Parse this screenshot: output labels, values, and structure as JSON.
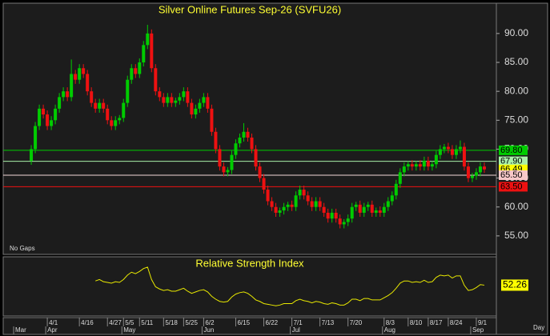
{
  "chart_data": [
    {
      "type": "candlestick",
      "title": "Silver Online Futures Sep-26 (SVFU26)",
      "annotation": "No Gaps",
      "x_unit": "Day",
      "ylim": [
        51.8,
        95.1
      ],
      "yticks": [
        {
          "value": 55,
          "label": "55.00"
        },
        {
          "value": 60,
          "label": "60.00"
        },
        {
          "value": 65,
          "label": "65.00"
        },
        {
          "value": 70,
          "label": "70.00"
        },
        {
          "value": 75,
          "label": "75.00"
        },
        {
          "value": 80,
          "label": "80.00"
        },
        {
          "value": 85,
          "label": "85.00"
        },
        {
          "value": 90,
          "label": "90.00"
        }
      ],
      "xlim": [
        -7,
        116
      ],
      "xticks": [
        {
          "value": 4,
          "label": "4/1"
        },
        {
          "value": 12,
          "label": "4/16"
        },
        {
          "value": 19,
          "label": "4/27"
        },
        {
          "value": 23,
          "label": "5/5"
        },
        {
          "value": 27,
          "label": "5/11"
        },
        {
          "value": 33,
          "label": "5/18"
        },
        {
          "value": 38,
          "label": "5/25"
        },
        {
          "value": 43,
          "label": "6/2"
        },
        {
          "value": 51,
          "label": "6/15"
        },
        {
          "value": 58,
          "label": "6/22"
        },
        {
          "value": 65,
          "label": "7/1"
        },
        {
          "value": 72,
          "label": "7/13"
        },
        {
          "value": 79,
          "label": "7/20"
        },
        {
          "value": 88,
          "label": "8/3"
        },
        {
          "value": 94,
          "label": "8/10"
        },
        {
          "value": 99,
          "label": "8/17"
        },
        {
          "value": 104,
          "label": "8/24"
        },
        {
          "value": 111,
          "label": "9/1"
        }
      ],
      "month_ticks": [
        {
          "value": -4,
          "label": "Mar"
        },
        {
          "value": 4,
          "label": "Apr"
        },
        {
          "value": 23,
          "label": "May"
        },
        {
          "value": 43,
          "label": "Jun"
        },
        {
          "value": 65,
          "label": "Jul"
        },
        {
          "value": 88,
          "label": "Aug"
        },
        {
          "value": 110,
          "label": "Sep"
        }
      ],
      "up_color": "#00cc00",
      "down_color": "#ee1111",
      "levels": [
        {
          "value": 69.8,
          "label": "69.80",
          "color": "#00cc00",
          "label_bg": "#00cc00",
          "line": true
        },
        {
          "value": 67.9,
          "label": "67.90",
          "color": "#a8f0a8",
          "label_bg": "#a8f0a8",
          "line": true
        },
        {
          "value": 66.49,
          "label": "66.49",
          "color": "#ffff00",
          "label_bg": "#ffff00",
          "line": false
        },
        {
          "value": 65.5,
          "label": "65.50",
          "color": "#f4d8d8",
          "label_bg": "#f7c8c8",
          "line": true
        },
        {
          "value": 63.5,
          "label": "63.50",
          "color": "#ee1111",
          "label_bg": "#ee1111",
          "line": true
        }
      ],
      "values": [
        [
          68,
          70.7,
          67.3,
          70
        ],
        [
          70,
          74.7,
          69.3,
          74
        ],
        [
          74,
          77.7,
          73.3,
          77
        ],
        [
          77,
          77.7,
          75.3,
          76
        ],
        [
          76,
          76.7,
          73.3,
          74
        ],
        [
          74,
          75.7,
          73.3,
          75
        ],
        [
          75,
          77.7,
          74.3,
          77
        ],
        [
          77,
          79.7,
          76.3,
          79
        ],
        [
          79,
          80.7,
          78.3,
          80
        ],
        [
          80,
          80.7,
          78.3,
          79
        ],
        [
          79,
          85.5,
          78.3,
          83
        ],
        [
          83,
          83.7,
          81.3,
          82
        ],
        [
          82,
          84.7,
          81.3,
          84
        ],
        [
          84,
          84.7,
          82.3,
          83
        ],
        [
          83,
          83.7,
          79.3,
          80
        ],
        [
          80,
          80.7,
          77.3,
          78
        ],
        [
          78,
          78.7,
          76.3,
          77
        ],
        [
          77,
          78.7,
          76.3,
          78
        ],
        [
          78,
          78.7,
          76.3,
          77
        ],
        [
          77,
          77.7,
          74.3,
          75
        ],
        [
          75,
          75.7,
          73.3,
          74
        ],
        [
          74,
          75.7,
          73.3,
          75
        ],
        [
          75,
          75.9,
          74.3,
          75.4
        ],
        [
          75.4,
          78.7,
          74.7,
          78
        ],
        [
          78,
          82.7,
          77.3,
          82
        ],
        [
          82,
          84.7,
          81.3,
          84
        ],
        [
          84,
          84.7,
          82.3,
          83
        ],
        [
          83,
          85.7,
          82.3,
          85
        ],
        [
          85,
          88.7,
          84.3,
          88
        ],
        [
          88,
          91.5,
          87.3,
          90
        ],
        [
          90,
          90.7,
          83.3,
          84
        ],
        [
          84,
          84.7,
          79.3,
          80
        ],
        [
          80,
          80.7,
          78.3,
          79
        ],
        [
          79,
          79.7,
          77.3,
          78
        ],
        [
          78,
          79.7,
          77.3,
          79
        ],
        [
          79,
          79.7,
          77.3,
          78
        ],
        [
          78,
          78.9,
          77.3,
          78.4
        ],
        [
          78.4,
          79.7,
          77.7,
          79
        ],
        [
          79,
          80.7,
          78.3,
          80
        ],
        [
          80,
          80.7,
          77.3,
          78
        ],
        [
          78,
          78.7,
          75.3,
          76
        ],
        [
          76,
          77.7,
          75.3,
          77
        ],
        [
          77,
          78.7,
          76.3,
          78
        ],
        [
          78,
          79.7,
          77.3,
          79
        ],
        [
          79,
          79.7,
          76.3,
          77
        ],
        [
          77,
          77.7,
          72.3,
          73
        ],
        [
          73,
          73.7,
          69.3,
          70
        ],
        [
          70,
          70.7,
          66.3,
          67
        ],
        [
          67,
          67.7,
          65.3,
          66
        ],
        [
          66,
          66.9,
          65.3,
          66.4
        ],
        [
          66.4,
          69.7,
          65.7,
          69
        ],
        [
          69,
          71.7,
          68.3,
          71
        ],
        [
          71,
          72.7,
          70.3,
          72
        ],
        [
          72,
          74.5,
          71.3,
          73
        ],
        [
          73,
          73.7,
          71.3,
          72
        ],
        [
          72,
          72.7,
          69.3,
          70
        ],
        [
          70,
          70.7,
          66.3,
          67
        ],
        [
          67,
          67.7,
          64.3,
          65
        ],
        [
          65,
          65.7,
          62.3,
          63
        ],
        [
          63,
          63.7,
          60.3,
          61
        ],
        [
          61,
          61.7,
          59.3,
          60
        ],
        [
          60,
          60.7,
          58.3,
          59
        ],
        [
          59,
          59.9,
          58.3,
          59.4
        ],
        [
          59.4,
          60.7,
          58.7,
          60
        ],
        [
          60,
          60.9,
          59.3,
          60.4
        ],
        [
          60.4,
          61.1,
          59.3,
          60
        ],
        [
          60,
          62.7,
          59.3,
          62
        ],
        [
          62,
          63.7,
          61.3,
          63
        ],
        [
          63,
          63.7,
          61.3,
          62
        ],
        [
          62,
          62.7,
          60.3,
          61
        ],
        [
          61,
          61.7,
          59.3,
          60
        ],
        [
          60,
          61.7,
          59.3,
          61
        ],
        [
          61,
          61.7,
          59.3,
          60
        ],
        [
          60,
          60.7,
          58.3,
          59
        ],
        [
          59,
          59.7,
          57.3,
          58
        ],
        [
          58,
          59.7,
          57.3,
          59
        ],
        [
          59,
          59.7,
          57.3,
          58
        ],
        [
          58,
          58.7,
          56.3,
          57
        ],
        [
          57,
          57.9,
          56.3,
          57.4
        ],
        [
          57.4,
          58.7,
          56.7,
          58
        ],
        [
          58,
          60.7,
          57.3,
          60
        ],
        [
          60,
          60.9,
          59.3,
          60.4
        ],
        [
          60.4,
          61.1,
          58.3,
          59
        ],
        [
          59,
          60.7,
          58.3,
          60
        ],
        [
          60,
          60.9,
          59.3,
          60.4
        ],
        [
          60.4,
          61.1,
          58.3,
          59
        ],
        [
          59,
          59.9,
          58.3,
          59.4
        ],
        [
          59.4,
          60.1,
          58.3,
          59
        ],
        [
          59,
          60.7,
          58.3,
          60
        ],
        [
          60,
          61.7,
          59.3,
          61
        ],
        [
          61,
          62.7,
          60.3,
          62
        ],
        [
          62,
          64.7,
          61.3,
          64
        ],
        [
          64,
          66.7,
          63.3,
          66
        ],
        [
          66,
          67.7,
          65.3,
          67
        ],
        [
          67,
          67.9,
          66.3,
          67.4
        ],
        [
          67.4,
          68.1,
          66.3,
          67
        ],
        [
          67,
          67.9,
          66.3,
          67.4
        ],
        [
          67.4,
          68.1,
          66.3,
          67
        ],
        [
          67,
          68.7,
          66.3,
          68
        ],
        [
          68,
          68.7,
          66.3,
          67
        ],
        [
          67,
          67.9,
          66.3,
          67.4
        ],
        [
          67.4,
          69.7,
          66.7,
          69
        ],
        [
          69,
          70.7,
          68.3,
          70
        ],
        [
          70,
          70.9,
          69.3,
          70.4
        ],
        [
          70.4,
          71.1,
          69.3,
          70
        ],
        [
          70,
          70.7,
          68.3,
          69
        ],
        [
          69,
          70.7,
          68.3,
          70
        ],
        [
          70,
          71.5,
          69.3,
          70.4
        ],
        [
          70.4,
          71.1,
          66.3,
          67
        ],
        [
          67,
          67.7,
          64.3,
          65
        ],
        [
          65,
          65.9,
          64.3,
          65.4
        ],
        [
          65.4,
          66.7,
          64.7,
          66
        ],
        [
          66,
          67.7,
          65.3,
          67
        ],
        [
          67,
          67.7,
          65.9,
          66.49
        ]
      ]
    },
    {
      "type": "line",
      "title": "Relative Strength Index",
      "ylim": [
        10,
        90
      ],
      "color": "#e8e800",
      "label_bg": "#ffff00",
      "values": [
        null,
        null,
        null,
        null,
        null,
        null,
        null,
        null,
        null,
        null,
        null,
        null,
        null,
        null,
        null,
        null,
        58,
        60,
        57,
        56,
        55,
        57,
        56,
        60,
        66,
        70,
        68,
        71,
        75,
        77,
        60,
        50,
        47,
        45,
        46,
        44,
        44,
        46,
        48,
        44,
        41,
        43,
        45,
        46,
        43,
        37,
        33,
        30,
        29,
        30,
        36,
        40,
        42,
        43,
        41,
        37,
        32,
        30,
        27,
        26,
        25,
        24,
        25,
        27,
        27,
        27,
        31,
        33,
        31,
        30,
        28,
        30,
        29,
        27,
        26,
        28,
        27,
        25,
        25,
        28,
        33,
        33,
        31,
        34,
        34,
        32,
        32,
        32,
        35,
        38,
        42,
        48,
        55,
        58,
        58,
        56,
        57,
        56,
        59,
        56,
        57,
        63,
        66,
        65,
        66,
        62,
        65,
        65,
        52,
        45,
        46,
        49,
        53,
        52.26
      ]
    }
  ]
}
